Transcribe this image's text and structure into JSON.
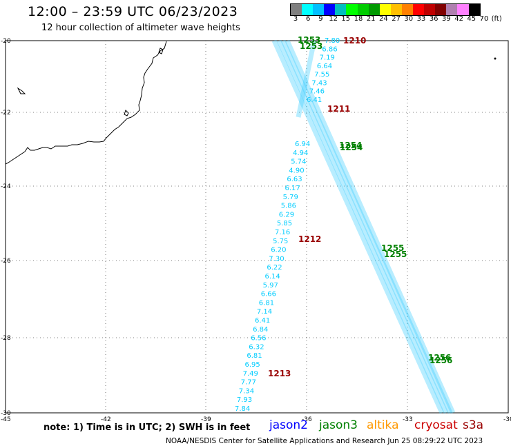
{
  "header": {
    "title": "12:00 – 23:59 UTC 06/23/2023",
    "subtitle": "12 hour collection of altimeter wave heights"
  },
  "colorbar": {
    "labels": [
      "3",
      "6",
      "9",
      "12",
      "15",
      "18",
      "21",
      "24",
      "27",
      "30",
      "33",
      "36",
      "39",
      "42",
      "45",
      "70",
      "(ft)"
    ],
    "colors": [
      "#7f7f7f",
      "#00ffff",
      "#00bfff",
      "#0000ff",
      "#00bfbf",
      "#00ff00",
      "#00cc00",
      "#009900",
      "#ffff00",
      "#ffbf00",
      "#ff8000",
      "#ff0000",
      "#bf0000",
      "#800000",
      "#b07fb0",
      "#ff80ff",
      "#000000"
    ]
  },
  "axes": {
    "lat_labels": [
      "-20",
      "-22",
      "-24",
      "-26",
      "-28",
      "-30"
    ],
    "lon_labels": [
      "-45",
      "-42",
      "-39",
      "-36",
      "-33",
      "-30"
    ]
  },
  "tracks": {
    "track_a": {
      "color": "#00ccff",
      "values": [
        "6.94",
        "4.94",
        "5.74",
        "4.90",
        "6.63",
        "6.17",
        "5.79",
        "5.86",
        "6.29",
        "5.85",
        "7.16",
        "5.75",
        "6.20",
        "7.30",
        "6.22",
        "6.14",
        "5.97",
        "6.66",
        "6.81",
        "7.14",
        "6.41",
        "6.84",
        "6.56",
        "6.32",
        "6.81",
        "6.95",
        "7.49",
        "7.77",
        "7.34",
        "7.93",
        "7.84"
      ]
    },
    "track_b": {
      "color": "#00ccff",
      "values": [
        "7.80",
        "6.86",
        "7.19",
        "6.64",
        "7.55",
        "7.43",
        "7.46",
        "6.41"
      ]
    },
    "track_c": {
      "color": "#00ccff",
      "values": []
    }
  },
  "time_labels": [
    {
      "text": "1253",
      "color": "#008000"
    },
    {
      "text": "1253",
      "color": "#008000"
    },
    {
      "text": "1210",
      "color": "#990000"
    },
    {
      "text": "1211",
      "color": "#990000"
    },
    {
      "text": "1254",
      "color": "#008000"
    },
    {
      "text": "1254",
      "color": "#008000"
    },
    {
      "text": "1212",
      "color": "#990000"
    },
    {
      "text": "1255",
      "color": "#008000"
    },
    {
      "text": "1255",
      "color": "#008000"
    },
    {
      "text": "1256",
      "color": "#008000"
    },
    {
      "text": "1256",
      "color": "#008000"
    },
    {
      "text": "1213",
      "color": "#990000"
    }
  ],
  "note": "note:  1) Time is in UTC;  2) SWH is in feet",
  "satellites": [
    {
      "name": "jason2",
      "color": "#0000ff"
    },
    {
      "name": "jason3",
      "color": "#008000"
    },
    {
      "name": "altika",
      "color": "#ff9900"
    },
    {
      "name": "cryosat",
      "color": "#cc0000"
    },
    {
      "name": "s3a",
      "color": "#990000"
    }
  ],
  "footer": "NOAA/NESDIS Center for Satellite Applications and Research     Jun 25 08:29:22 UTC 2023"
}
